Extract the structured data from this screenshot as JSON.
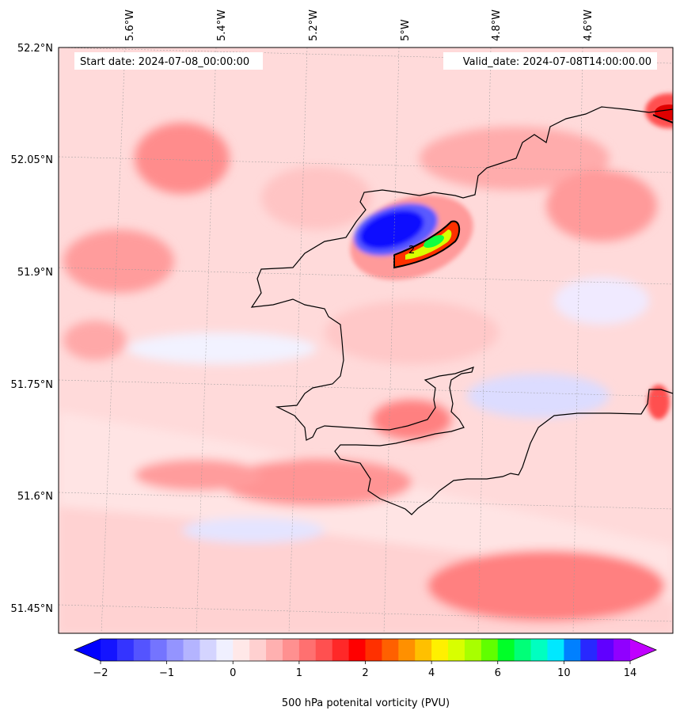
{
  "map": {
    "start_label": "Start date: 2024-07-08_00:00:00",
    "valid_label": "Valid_date: 2024-07-08T14:00:00.00",
    "lon_labels": [
      "5.6°W",
      "5.4°W",
      "5.2°W",
      "5°W",
      "4.8°W",
      "4.6°W"
    ],
    "lat_labels": [
      "52.2°N",
      "52.05°N",
      "51.9°N",
      "51.75°N",
      "51.6°N",
      "51.45°N"
    ],
    "contour_label": "2",
    "extent": {
      "lon_min": -5.7,
      "lon_max": -4.42,
      "lat_min": 51.42,
      "lat_max": 52.2
    }
  },
  "colorbar": {
    "label": "500 hPa potenital vorticity (PVU)",
    "tick_labels": [
      "−2",
      "−1",
      "0",
      "1",
      "2",
      "4",
      "6",
      "10",
      "14"
    ],
    "colors": [
      "#1414ff",
      "#3434ff",
      "#5454ff",
      "#7474ff",
      "#9494ff",
      "#b4b4ff",
      "#d4d4ff",
      "#f0f0ff",
      "#ffe8e8",
      "#ffd0d0",
      "#ffb0b0",
      "#ff9090",
      "#ff7070",
      "#ff5050",
      "#ff2828",
      "#ff0000",
      "#ff3000",
      "#ff6000",
      "#ff9000",
      "#ffc000",
      "#fff000",
      "#d8ff00",
      "#a8ff00",
      "#60ff00",
      "#00ff28",
      "#00ff78",
      "#00ffc0",
      "#00e8ff",
      "#0080ff",
      "#2828ff",
      "#6000ff",
      "#9000ff"
    ],
    "under_color": "#0000ff",
    "over_color": "#c000ff"
  }
}
